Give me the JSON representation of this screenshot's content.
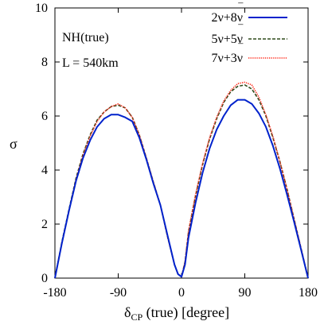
{
  "chart_data": {
    "type": "line",
    "xlabel": "δCP (true) [degree]",
    "xlabel_main": "δ",
    "xlabel_sub": "CP",
    "xlabel_rest": " (true) [degree]",
    "ylabel": "σ",
    "xlim": [
      -180,
      180
    ],
    "ylim": [
      0,
      10
    ],
    "xticks": [
      -180,
      -90,
      0,
      90,
      180
    ],
    "xtick_labels": [
      "-180",
      "-90",
      "0",
      "90",
      "180"
    ],
    "yticks": [
      0,
      2,
      4,
      6,
      8,
      10
    ],
    "ytick_labels": [
      "0",
      "2",
      "4",
      "6",
      "8",
      "10"
    ],
    "annotations": [
      "NH(true)",
      "L = 540km"
    ],
    "legend_position": "top-right",
    "x": [
      -180,
      -170,
      -160,
      -150,
      -140,
      -130,
      -120,
      -110,
      -100,
      -90,
      -80,
      -70,
      -60,
      -50,
      -40,
      -30,
      -20,
      -10,
      -5,
      0,
      5,
      10,
      20,
      30,
      40,
      50,
      60,
      70,
      80,
      90,
      100,
      110,
      120,
      130,
      140,
      150,
      160,
      170,
      180
    ],
    "series": [
      {
        "name": "2ν+8ν̄",
        "legend_main": "2ν+8ν",
        "legend_bar": "ν",
        "color": "#0022cc",
        "style": "solid",
        "values": [
          0.0,
          1.3,
          2.5,
          3.6,
          4.45,
          5.1,
          5.6,
          5.9,
          6.05,
          6.05,
          5.95,
          5.8,
          5.2,
          4.4,
          3.5,
          2.7,
          1.6,
          0.5,
          0.15,
          0.05,
          0.5,
          1.5,
          2.8,
          3.9,
          4.8,
          5.5,
          6.0,
          6.4,
          6.6,
          6.6,
          6.45,
          6.1,
          5.6,
          4.9,
          4.05,
          3.1,
          2.1,
          1.05,
          0.0
        ]
      },
      {
        "name": "5ν+5ν̄",
        "legend_main": "5ν+5ν",
        "legend_bar": "ν",
        "color": "#2e4a1a",
        "style": "dashed",
        "values": [
          0.0,
          1.35,
          2.55,
          3.7,
          4.6,
          5.3,
          5.85,
          6.15,
          6.35,
          6.4,
          6.3,
          5.95,
          5.3,
          4.45,
          3.55,
          2.7,
          1.55,
          0.5,
          0.15,
          0.05,
          0.6,
          1.7,
          3.05,
          4.2,
          5.15,
          5.9,
          6.5,
          6.9,
          7.1,
          7.15,
          7.0,
          6.6,
          6.0,
          5.2,
          4.3,
          3.3,
          2.2,
          1.1,
          0.0
        ]
      },
      {
        "name": "7ν+3ν̄",
        "legend_main": "7ν+3ν",
        "legend_bar": "ν",
        "color": "#ff2a1a",
        "style": "dotted",
        "values": [
          0.0,
          1.3,
          2.5,
          3.65,
          4.55,
          5.25,
          5.8,
          6.15,
          6.35,
          6.45,
          6.3,
          5.95,
          5.3,
          4.45,
          3.55,
          2.7,
          1.55,
          0.5,
          0.15,
          0.05,
          0.6,
          1.75,
          3.1,
          4.25,
          5.2,
          5.95,
          6.55,
          6.95,
          7.2,
          7.25,
          7.15,
          6.7,
          6.05,
          5.25,
          4.3,
          3.3,
          2.2,
          1.1,
          0.0
        ]
      }
    ]
  }
}
